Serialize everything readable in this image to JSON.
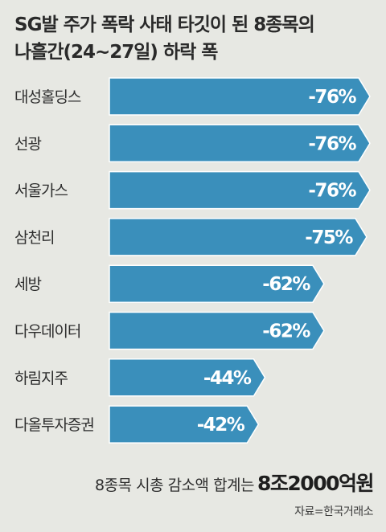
{
  "title_line1": "SG발 주가 폭락 사태 타깃이 된 8종목의",
  "title_line2": "나흘간(24~27일) 하락 폭",
  "summary_text": "8종목 시총 감소액 합계는",
  "summary_value": "8조2000억원",
  "source": "자료=한국거래소",
  "colors": {
    "bar": "#3a8fbb",
    "bar_stroke": "#ffffff",
    "background": "#e7e8e3"
  },
  "chart_data": {
    "type": "bar",
    "orientation": "horizontal",
    "title": "SG발 주가 폭락 사태 타깃이 된 8종목의 나흘간(24~27일) 하락 폭",
    "categories": [
      "대성홀딩스",
      "선광",
      "서울가스",
      "삼천리",
      "세방",
      "다우데이터",
      "하림지주",
      "다올투자증권"
    ],
    "values": [
      -76,
      -76,
      -76,
      -75,
      -62,
      -62,
      -44,
      -42
    ],
    "value_labels": [
      "-76%",
      "-76%",
      "-76%",
      "-75%",
      "-62%",
      "-62%",
      "-44%",
      "-42%"
    ],
    "unit": "%",
    "xlim": [
      0,
      76
    ],
    "grid": false,
    "legend": "none"
  }
}
